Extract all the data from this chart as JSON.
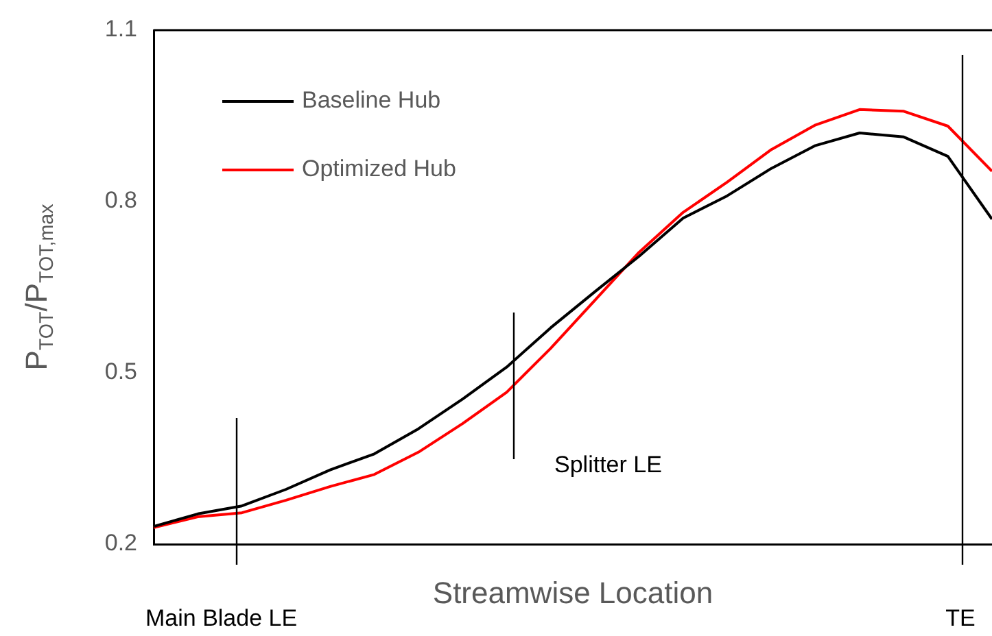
{
  "chart_data": {
    "type": "line",
    "xlabel": "Streamwise Location",
    "ylabel": "P$_{TOT}$/P$_{TOT,max}$",
    "ylim": [
      0.2,
      1.1
    ],
    "yticks": [
      0.2,
      0.5,
      0.8,
      1.1
    ],
    "tick_labels": "y",
    "grid": false,
    "legend": "top left",
    "marker": "none",
    "line_style": "solid",
    "categories": [
      null,
      null,
      null,
      null,
      null,
      null,
      null,
      null,
      null,
      null,
      null,
      null,
      null,
      null,
      null,
      null,
      null,
      null,
      null,
      null
    ],
    "series": [
      {
        "name": "Baseline Hub",
        "color": "#000000",
        "values": [
          0.231,
          0.253,
          0.267,
          0.296,
          0.33,
          0.358,
          0.402,
          0.454,
          0.51,
          0.579,
          0.642,
          0.704,
          0.771,
          0.81,
          0.858,
          0.898,
          0.92,
          0.913,
          0.879,
          0.769
        ]
      },
      {
        "name": "Optimized Hub",
        "color": "#ff0000",
        "values": [
          0.229,
          0.248,
          0.255,
          0.277,
          0.301,
          0.322,
          0.361,
          0.411,
          0.466,
          0.543,
          0.627,
          0.711,
          0.781,
          0.834,
          0.891,
          0.934,
          0.961,
          0.958,
          0.932,
          0.853
        ]
      }
    ],
    "annotations": [
      "Main Blade LE",
      "Splitter LE",
      "TE"
    ]
  }
}
